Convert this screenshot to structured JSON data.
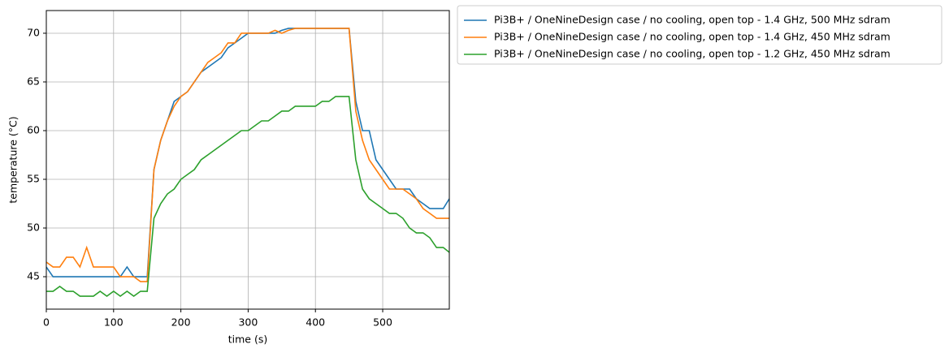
{
  "chart_data": {
    "type": "line",
    "x_label": "time (s)",
    "y_label": "temperature (°C)",
    "x": [
      0,
      10,
      20,
      30,
      40,
      50,
      60,
      70,
      80,
      90,
      100,
      110,
      120,
      130,
      140,
      150,
      160,
      170,
      180,
      190,
      200,
      210,
      220,
      230,
      240,
      250,
      260,
      270,
      280,
      290,
      300,
      310,
      320,
      330,
      340,
      350,
      360,
      370,
      380,
      390,
      400,
      410,
      420,
      430,
      440,
      450,
      460,
      470,
      480,
      490,
      500,
      510,
      520,
      530,
      540,
      550,
      560,
      570,
      580,
      590,
      599
    ],
    "series": [
      {
        "name": "Pi3B+ / OneNineDesign case / no cooling, open top - 1.4 GHz, 500 MHz sdram",
        "color": "#1f77b4",
        "values": [
          46,
          45,
          45,
          45,
          45,
          45,
          45,
          45,
          45,
          45,
          45,
          45,
          46,
          45,
          45,
          45,
          56,
          59,
          61,
          63,
          63.5,
          64,
          65,
          66,
          66.5,
          67,
          67.5,
          68.5,
          69,
          69.5,
          70,
          70,
          70,
          70,
          70,
          70.3,
          70.5,
          70.5,
          70.5,
          70.5,
          70.5,
          70.5,
          70.5,
          70.5,
          70.5,
          70.5,
          63,
          60,
          60,
          57,
          56,
          55,
          54,
          54,
          54,
          53,
          52.5,
          52,
          52,
          52,
          53
        ]
      },
      {
        "name": "Pi3B+ / OneNineDesign case / no cooling, open top - 1.4 GHz, 450 MHz sdram",
        "color": "#ff7f0e",
        "values": [
          46.5,
          46,
          46,
          47,
          47,
          46,
          48,
          46,
          46,
          46,
          46,
          45,
          45,
          45,
          44.5,
          44.5,
          56,
          59,
          61,
          62.5,
          63.5,
          64,
          65,
          66,
          67,
          67.5,
          68,
          69,
          69,
          70,
          70,
          70,
          70,
          70,
          70.3,
          70,
          70.3,
          70.5,
          70.5,
          70.5,
          70.5,
          70.5,
          70.5,
          70.5,
          70.5,
          70.5,
          62,
          59,
          57,
          56,
          55,
          54,
          54,
          54,
          53.5,
          53,
          52,
          51.5,
          51,
          51,
          51
        ]
      },
      {
        "name": "Pi3B+ / OneNineDesign case / no cooling, open top - 1.2 GHz, 450 MHz sdram",
        "color": "#2ca02c",
        "values": [
          43.5,
          43.5,
          44,
          43.5,
          43.5,
          43,
          43,
          43,
          43.5,
          43,
          43.5,
          43,
          43.5,
          43,
          43.5,
          43.5,
          51,
          52.5,
          53.5,
          54,
          55,
          55.5,
          56,
          57,
          57.5,
          58,
          58.5,
          59,
          59.5,
          60,
          60,
          60.5,
          61,
          61,
          61.5,
          62,
          62,
          62.5,
          62.5,
          62.5,
          62.5,
          63,
          63,
          63.5,
          63.5,
          63.5,
          57,
          54,
          53,
          52.5,
          52,
          51.5,
          51.5,
          51,
          50,
          49.5,
          49.5,
          49,
          48,
          48,
          47.5
        ]
      }
    ],
    "xlim": [
      0,
      599
    ],
    "ylim": [
      41.67,
      72.33
    ],
    "xticks": [
      0,
      100,
      200,
      300,
      400,
      500
    ],
    "yticks": [
      45,
      50,
      55,
      60,
      65,
      70
    ],
    "grid": true,
    "legend": "outside-upper-right"
  }
}
